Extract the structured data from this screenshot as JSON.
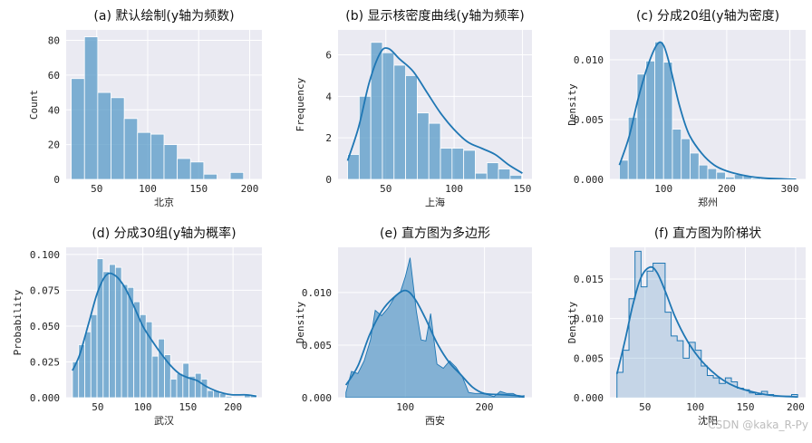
{
  "watermark": "CSDN @kaka_R-Py",
  "colors": {
    "bar": "#5799c7",
    "line": "#1f77b4",
    "panel": "#eaeaf2",
    "grid": "#ffffff"
  },
  "chart_data": [
    {
      "type": "bar",
      "title": "(a) 默认绘制(y轴为频数)",
      "xlabel": "北京",
      "ylabel": "Count",
      "xlim": [
        20,
        212
      ],
      "ylim": [
        0,
        86
      ],
      "xticks": [
        50,
        100,
        150,
        200
      ],
      "yticks": [
        0,
        20,
        40,
        60,
        80
      ],
      "bin_edges": [
        25,
        38,
        51,
        64,
        77,
        90,
        103,
        116,
        129,
        142,
        155,
        168,
        181,
        194,
        207
      ],
      "values": [
        58,
        82,
        50,
        47,
        35,
        27,
        26,
        20,
        12,
        10,
        3,
        0,
        4,
        0
      ],
      "hist_style": "bars",
      "kde": false
    },
    {
      "type": "bar",
      "title": "(b) 显示核密度曲线(y轴为频率)",
      "xlabel": "上海",
      "ylabel": "Frequency",
      "xlim": [
        15,
        157
      ],
      "ylim": [
        0,
        7.2
      ],
      "xticks": [
        50,
        100,
        150
      ],
      "yticks": [
        0,
        2,
        4,
        6
      ],
      "bin_edges": [
        22,
        30.5,
        39,
        47.5,
        56,
        64.5,
        73,
        81.5,
        90,
        98.5,
        107,
        115.5,
        124,
        132.5,
        141,
        149.5
      ],
      "values": [
        1.2,
        4.0,
        6.6,
        6.1,
        5.5,
        5.0,
        3.2,
        2.7,
        1.5,
        1.5,
        1.4,
        0.3,
        0.8,
        0.5,
        0.2
      ],
      "kde": [
        [
          22,
          0.9
        ],
        [
          30,
          2.5
        ],
        [
          38,
          4.7
        ],
        [
          46,
          6.1
        ],
        [
          52,
          6.3
        ],
        [
          60,
          5.8
        ],
        [
          70,
          5.2
        ],
        [
          80,
          4.2
        ],
        [
          90,
          3.2
        ],
        [
          100,
          2.4
        ],
        [
          110,
          1.8
        ],
        [
          120,
          1.5
        ],
        [
          130,
          1.2
        ],
        [
          140,
          0.7
        ],
        [
          150,
          0.3
        ]
      ],
      "hist_style": "bars"
    },
    {
      "type": "bar",
      "title": "(c) 分成20组(y轴为密度)",
      "xlabel": "郑州",
      "ylabel": "Density",
      "xlim": [
        15,
        325
      ],
      "ylim": [
        0,
        0.0125
      ],
      "xticks": [
        100,
        200,
        300
      ],
      "yticks": [
        0,
        0.005,
        0.01
      ],
      "ytick_labels": [
        "0.000",
        "0.005",
        "0.010"
      ],
      "bin_edges": [
        30,
        44,
        58,
        72,
        86,
        100,
        114,
        128,
        142,
        156,
        170,
        184,
        198,
        212,
        226,
        240,
        254,
        268,
        282,
        296,
        310
      ],
      "values": [
        0.0016,
        0.0052,
        0.0088,
        0.0099,
        0.0115,
        0.0098,
        0.0042,
        0.0034,
        0.0022,
        0.0012,
        0.0009,
        0.0006,
        0.0002,
        0.0004,
        0.0003,
        0.0001,
        0.0001,
        0.0,
        0.0,
        0.0001
      ],
      "kde": [
        [
          30,
          0.0012
        ],
        [
          45,
          0.0035
        ],
        [
          60,
          0.0068
        ],
        [
          75,
          0.0095
        ],
        [
          90,
          0.0113
        ],
        [
          100,
          0.0112
        ],
        [
          110,
          0.0095
        ],
        [
          125,
          0.0062
        ],
        [
          140,
          0.0038
        ],
        [
          160,
          0.0022
        ],
        [
          180,
          0.0012
        ],
        [
          200,
          0.0007
        ],
        [
          230,
          0.0003
        ],
        [
          260,
          0.0001
        ],
        [
          310,
          0.0
        ]
      ],
      "hist_style": "bars"
    },
    {
      "type": "bar",
      "title": "(d) 分成30组(y轴为概率)",
      "xlabel": "武汉",
      "ylabel": "Probability",
      "xlim": [
        15,
        232
      ],
      "ylim": [
        0,
        0.105
      ],
      "xticks": [
        50,
        100,
        150,
        200
      ],
      "yticks": [
        0,
        0.025,
        0.05,
        0.075,
        0.1
      ],
      "ytick_labels": [
        "0.000",
        "0.025",
        "0.050",
        "0.075",
        "0.100"
      ],
      "bin_edges": [
        22,
        28.8,
        35.6,
        42.4,
        49.2,
        56,
        62.8,
        69.6,
        76.4,
        83.2,
        90,
        96.8,
        103.6,
        110.4,
        117.2,
        124,
        130.8,
        137.6,
        144.4,
        151.2,
        158,
        164.8,
        171.6,
        178.4,
        185.2,
        192,
        198.8,
        205.6,
        212.4,
        219.2,
        226
      ],
      "values": [
        0.025,
        0.037,
        0.046,
        0.058,
        0.097,
        0.088,
        0.093,
        0.091,
        0.079,
        0.077,
        0.067,
        0.058,
        0.053,
        0.029,
        0.041,
        0.03,
        0.013,
        0.017,
        0.024,
        0.015,
        0.017,
        0.013,
        0.005,
        0.005,
        0.003,
        0.001,
        0.0,
        0.0,
        0.002,
        0.002
      ],
      "kde": [
        [
          22,
          0.019
        ],
        [
          30,
          0.03
        ],
        [
          40,
          0.052
        ],
        [
          50,
          0.074
        ],
        [
          60,
          0.086
        ],
        [
          70,
          0.085
        ],
        [
          80,
          0.077
        ],
        [
          90,
          0.064
        ],
        [
          100,
          0.05
        ],
        [
          110,
          0.04
        ],
        [
          120,
          0.031
        ],
        [
          130,
          0.023
        ],
        [
          140,
          0.017
        ],
        [
          150,
          0.014
        ],
        [
          160,
          0.012
        ],
        [
          170,
          0.008
        ],
        [
          180,
          0.005
        ],
        [
          190,
          0.003
        ],
        [
          200,
          0.002
        ],
        [
          215,
          0.002
        ],
        [
          226,
          0.001
        ]
      ],
      "hist_style": "bars"
    },
    {
      "type": "area",
      "title": "(e) 直方图为多边形",
      "xlabel": "西安",
      "ylabel": "Density",
      "xlim": [
        15,
        260
      ],
      "ylim": [
        0,
        0.0143
      ],
      "xticks": [
        100,
        200
      ],
      "yticks": [
        0,
        0.005,
        0.01
      ],
      "ytick_labels": [
        "0.000",
        "0.005",
        "0.010"
      ],
      "polygon": [
        [
          25,
          0.0005
        ],
        [
          32,
          0.0025
        ],
        [
          40,
          0.0023
        ],
        [
          48,
          0.0035
        ],
        [
          56,
          0.0055
        ],
        [
          62,
          0.0083
        ],
        [
          70,
          0.0078
        ],
        [
          78,
          0.0085
        ],
        [
          86,
          0.0095
        ],
        [
          94,
          0.0101
        ],
        [
          100,
          0.0115
        ],
        [
          106,
          0.0133
        ],
        [
          114,
          0.0082
        ],
        [
          120,
          0.0055
        ],
        [
          126,
          0.0054
        ],
        [
          132,
          0.008
        ],
        [
          140,
          0.0032
        ],
        [
          148,
          0.0028
        ],
        [
          156,
          0.0035
        ],
        [
          164,
          0.0029
        ],
        [
          172,
          0.002
        ],
        [
          180,
          0.0005
        ],
        [
          188,
          0.0004
        ],
        [
          196,
          0.0004
        ],
        [
          204,
          0.0003
        ],
        [
          212,
          0.0001
        ],
        [
          220,
          0.0006
        ],
        [
          228,
          0.0004
        ],
        [
          236,
          0.0004
        ],
        [
          244,
          0.0001
        ],
        [
          250,
          0.0002
        ]
      ],
      "kde": [
        [
          25,
          0.0012
        ],
        [
          40,
          0.003
        ],
        [
          55,
          0.006
        ],
        [
          70,
          0.0082
        ],
        [
          85,
          0.0095
        ],
        [
          100,
          0.0102
        ],
        [
          112,
          0.0094
        ],
        [
          125,
          0.0076
        ],
        [
          140,
          0.0052
        ],
        [
          155,
          0.0034
        ],
        [
          170,
          0.0022
        ],
        [
          185,
          0.001
        ],
        [
          200,
          0.0004
        ],
        [
          220,
          0.0003
        ],
        [
          240,
          0.0002
        ],
        [
          250,
          0.0001
        ]
      ],
      "hist_style": "poly"
    },
    {
      "type": "line",
      "title": "(f) 直方图为阶梯状",
      "xlabel": "沈阳",
      "ylabel": "Density",
      "xlim": [
        15,
        210
      ],
      "ylim": [
        0,
        0.019
      ],
      "xticks": [
        50,
        100,
        150,
        200
      ],
      "yticks": [
        0,
        0.005,
        0.01,
        0.015
      ],
      "ytick_labels": [
        "0.000",
        "0.005",
        "0.010",
        "0.015"
      ],
      "bin_edges": [
        22,
        28,
        34,
        40,
        46,
        52,
        58,
        64,
        70,
        76,
        82,
        88,
        94,
        100,
        106,
        112,
        118,
        124,
        130,
        136,
        142,
        148,
        154,
        160,
        166,
        172,
        178,
        184,
        190,
        196,
        202
      ],
      "values": [
        0.0032,
        0.006,
        0.0125,
        0.0185,
        0.014,
        0.016,
        0.017,
        0.017,
        0.0108,
        0.0078,
        0.0072,
        0.005,
        0.007,
        0.006,
        0.004,
        0.0028,
        0.0025,
        0.0018,
        0.0025,
        0.002,
        0.0012,
        0.001,
        0.0006,
        0.0004,
        0.0008,
        0.0004,
        0.0002,
        0.0002,
        0.0002,
        0.0004
      ],
      "kde": [
        [
          22,
          0.003
        ],
        [
          30,
          0.0072
        ],
        [
          38,
          0.0118
        ],
        [
          46,
          0.0152
        ],
        [
          55,
          0.0165
        ],
        [
          62,
          0.0158
        ],
        [
          70,
          0.0135
        ],
        [
          80,
          0.0102
        ],
        [
          92,
          0.0072
        ],
        [
          104,
          0.005
        ],
        [
          116,
          0.0034
        ],
        [
          128,
          0.0022
        ],
        [
          140,
          0.0014
        ],
        [
          155,
          0.0008
        ],
        [
          170,
          0.0004
        ],
        [
          185,
          0.0002
        ],
        [
          202,
          0.0001
        ]
      ],
      "hist_style": "step"
    }
  ]
}
